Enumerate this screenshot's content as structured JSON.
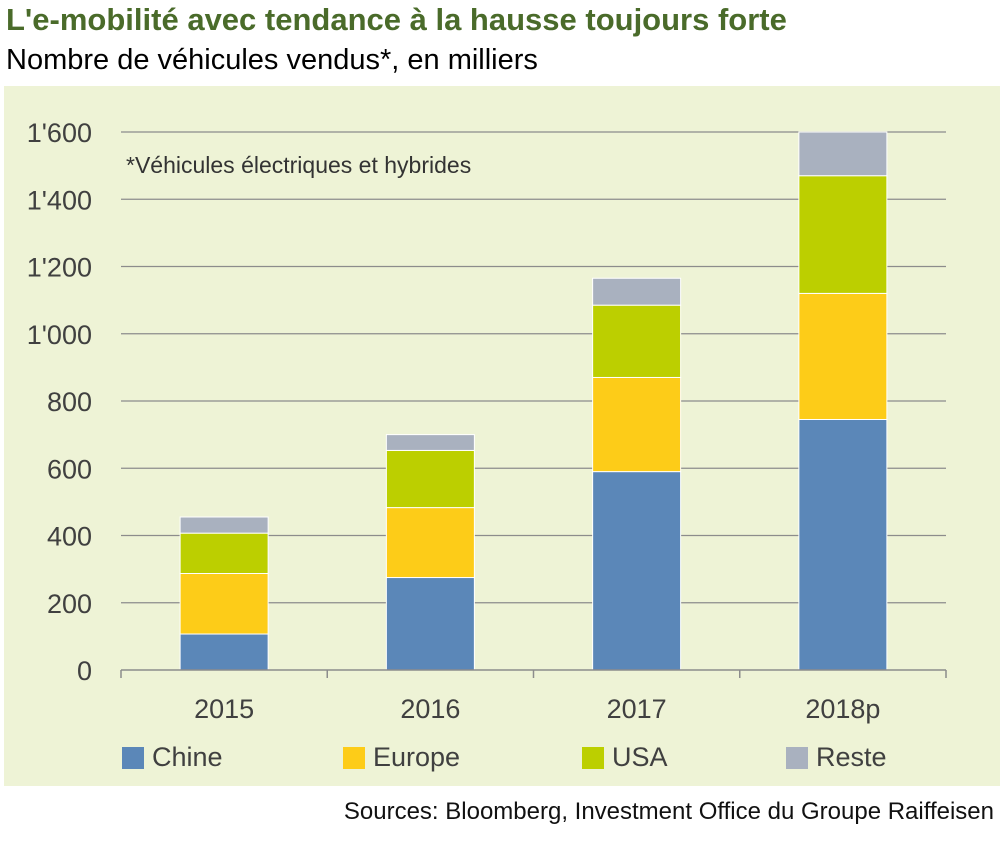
{
  "header": {
    "title": "L'e-mobilité avec tendance à la hausse toujours forte",
    "subtitle": "Nombre de véhicules vendus*, en milliers"
  },
  "note": "*Véhicules électriques et hybrides",
  "source": "Sources: Bloomberg, Investment Office du Groupe Raiffeisen",
  "colors": {
    "panel_bg": "#eef3d6",
    "title": "#4a6b2a",
    "Chine": "#5b87b8",
    "Europe": "#fdcc18",
    "USA": "#bccf00",
    "Reste": "#a9b1bf"
  },
  "chart_data": {
    "type": "bar",
    "stacked": true,
    "categories": [
      "2015",
      "2016",
      "2017",
      "2018p"
    ],
    "series": [
      {
        "name": "Chine",
        "values": [
          107,
          275,
          590,
          745
        ]
      },
      {
        "name": "Europe",
        "values": [
          180,
          208,
          280,
          375
        ]
      },
      {
        "name": "USA",
        "values": [
          120,
          170,
          215,
          350
        ]
      },
      {
        "name": "Reste",
        "values": [
          48,
          47,
          80,
          130
        ]
      }
    ],
    "ylim": [
      0,
      1600
    ],
    "yticks": [
      0,
      200,
      400,
      600,
      800,
      1000,
      1200,
      1400,
      1600
    ],
    "ytick_labels": [
      "0",
      "200",
      "400",
      "600",
      "800",
      "1'000",
      "1'200",
      "1'400",
      "1'600"
    ],
    "grid": true,
    "legend_position": "bottom"
  }
}
